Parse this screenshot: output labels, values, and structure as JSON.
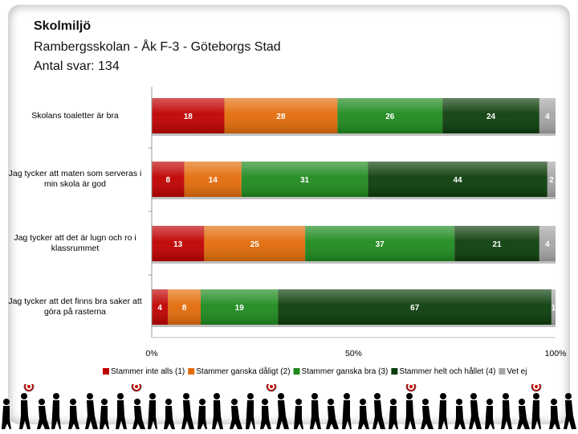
{
  "header": {
    "title": "Skolmiljö",
    "subtitle": "Rambergsskolan - Åk F-3 - Göteborgs Stad",
    "count": "Antal svar: 134"
  },
  "chart_data": {
    "type": "bar",
    "orientation": "horizontal",
    "stacked": "percent",
    "categories": [
      "Skolans toaletter är bra",
      "Jag tycker att maten som serveras i min skola är god",
      "Jag tycker att det är lugn och ro i klassrummet",
      "Jag tycker att det finns bra saker att göra på rasterna"
    ],
    "series": [
      {
        "name": "Stammer inte alls (1)",
        "color": "#c00000",
        "values": [
          18,
          8,
          13,
          4
        ]
      },
      {
        "name": "Stammer ganska dåligt (2)",
        "color": "#e36c09",
        "values": [
          28,
          14,
          25,
          8
        ]
      },
      {
        "name": "Stammer ganska bra (3)",
        "color": "#1e8a1e",
        "values": [
          26,
          31,
          37,
          19
        ]
      },
      {
        "name": "Stammer helt och hållet (4)",
        "color": "#0b3d0b",
        "values": [
          24,
          44,
          21,
          67
        ]
      },
      {
        "name": "Vet ej",
        "color": "#a6a6a6",
        "values": [
          4,
          2,
          4,
          1
        ]
      }
    ],
    "xlim": [
      0,
      100
    ],
    "x_ticks": [
      "0%",
      "50%",
      "100%"
    ],
    "legend": "bottom",
    "grid": false
  }
}
